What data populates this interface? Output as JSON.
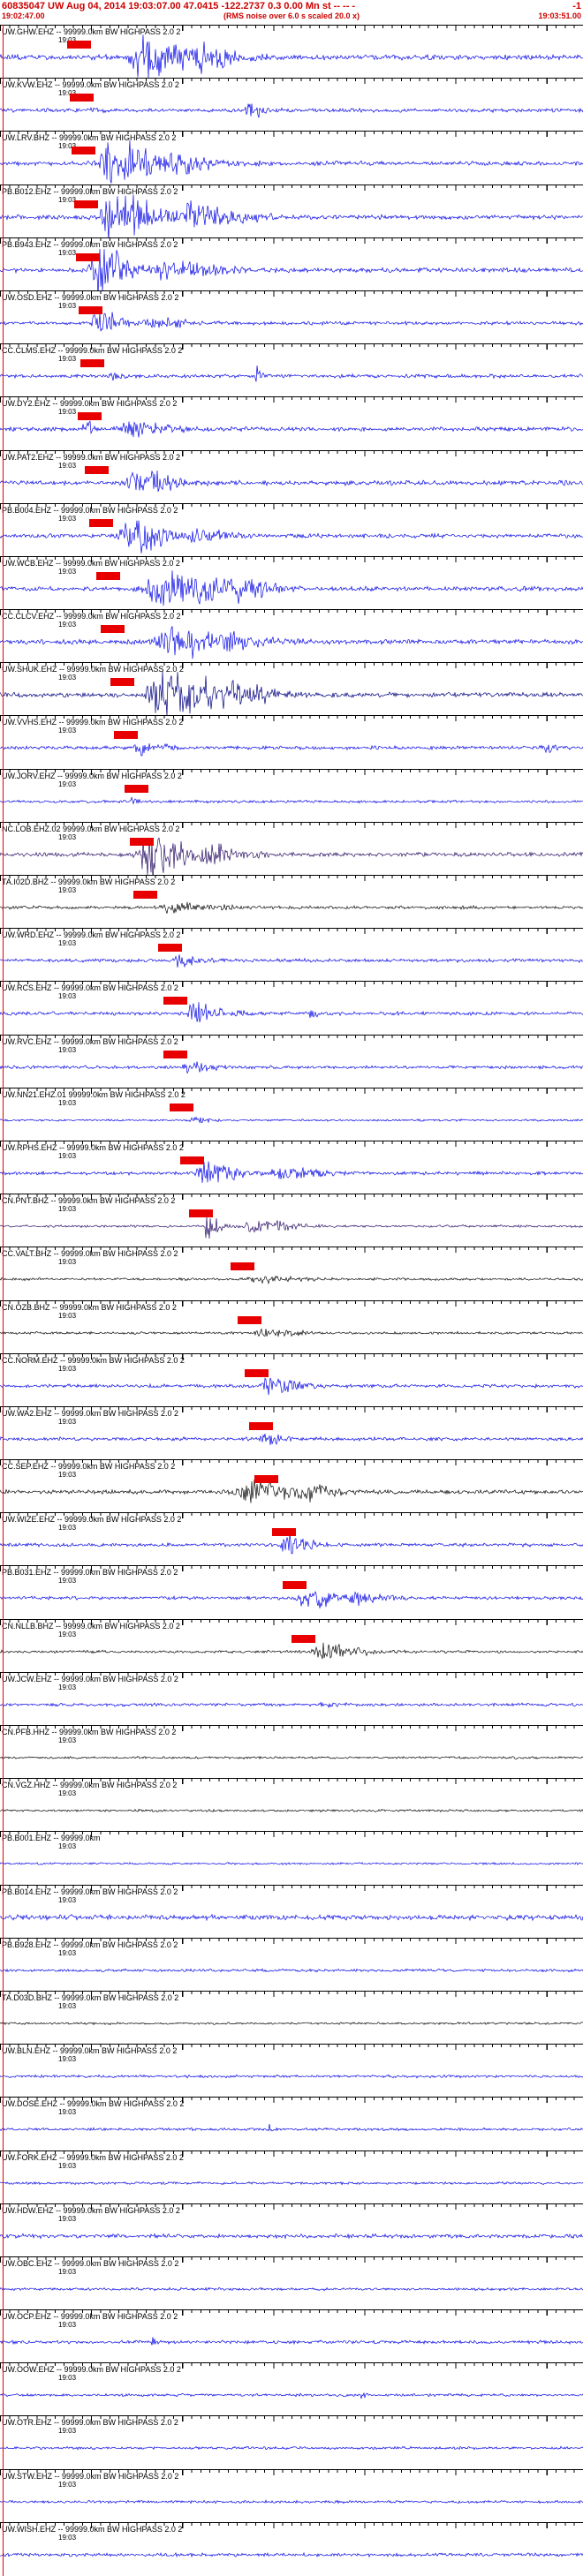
{
  "header": {
    "event_line": "60835047 UW Aug 04, 2014 19:03:07.00   47.0415 -122.2737   0.3 0.00 Mn st -- -- -",
    "flag": "-1",
    "window_start": "19:02:47.00",
    "scale_note": "(RMS noise over 6.0 s scaled 20.0 x)",
    "window_end": "19:03:51.00"
  },
  "colors": {
    "header_text": "#cc0000",
    "pick_marker": "#e80000",
    "background": "#ffffff",
    "trace_palette": {
      "blue": "#0909e6",
      "black": "#0a0a0a",
      "navy": "#000080",
      "indigo": "#2a1166"
    }
  },
  "time_axis": {
    "tick_label": "19:03",
    "start": "19:02:47.00",
    "end": "19:03:51.00",
    "span_seconds": 64
  },
  "chart_data": {
    "type": "line",
    "title": "Event 60835047 UW seismogram traces, highpass filtered, RMS noise over 6.0 s scaled 20.0 x",
    "x_start": "19:02:47.00",
    "x_end": "19:03:51.00",
    "x_tick": "19:03",
    "traces": [
      {
        "label": "UW.GHW.EHZ -- 99999.0km BW HIGHPASS 2.0 2",
        "color": "blue",
        "noise": 2.2,
        "pick": 0.115,
        "bursts": [
          [
            0.24,
            0.05,
            20
          ],
          [
            0.34,
            0.05,
            8
          ]
        ]
      },
      {
        "label": "UW.KVW.EHZ -- 99999.0km BW HIGHPASS 2.0 2",
        "color": "blue",
        "noise": 1.6,
        "pick": 0.12,
        "bursts": [
          [
            0.425,
            0.02,
            8
          ],
          [
            0.15,
            0.01,
            3
          ]
        ]
      },
      {
        "label": "UW.LRV.BHZ -- 99999.0km BW HIGHPASS 2.0 2",
        "color": "blue",
        "noise": 2.0,
        "pick": 0.123,
        "bursts": [
          [
            0.19,
            0.06,
            18
          ],
          [
            0.31,
            0.04,
            7
          ]
        ]
      },
      {
        "label": "PB.B012.EHZ -- 99999.0km BW HIGHPASS 2.0 2",
        "color": "blue",
        "noise": 2.0,
        "pick": 0.127,
        "bursts": [
          [
            0.19,
            0.06,
            20
          ],
          [
            0.33,
            0.06,
            9
          ]
        ]
      },
      {
        "label": "PB.B943.EHZ -- 99999.0km BW HIGHPASS 2.0 2",
        "color": "blue",
        "noise": 2.0,
        "pick": 0.13,
        "bursts": [
          [
            0.165,
            0.035,
            22
          ],
          [
            0.28,
            0.06,
            7
          ]
        ]
      },
      {
        "label": "UW.OSD.EHZ -- 99999.0km BW HIGHPASS 2.0 2",
        "color": "blue",
        "noise": 1.6,
        "pick": 0.135,
        "bursts": [
          [
            0.165,
            0.03,
            11
          ],
          [
            0.26,
            0.04,
            4
          ]
        ]
      },
      {
        "label": "CC.CLMS.EHZ -- 99999.0km BW HIGHPASS 2.0 2",
        "color": "blue",
        "noise": 1.6,
        "pick": 0.138,
        "bursts": [
          [
            0.44,
            0.006,
            9
          ],
          [
            0.19,
            0.02,
            3
          ]
        ]
      },
      {
        "label": "UW.DY2.EHZ -- 99999.0km BW HIGHPASS 2.0 2",
        "color": "blue",
        "noise": 1.8,
        "pick": 0.133,
        "bursts": [
          [
            0.143,
            0.008,
            14
          ],
          [
            0.22,
            0.05,
            5
          ]
        ]
      },
      {
        "label": "UW.PAT2.EHZ -- 99999.0km BW HIGHPASS 2.0 2",
        "color": "blue",
        "noise": 2.0,
        "pick": 0.146,
        "bursts": [
          [
            0.23,
            0.05,
            11
          ]
        ]
      },
      {
        "label": "PB.B004.EHZ -- 99999.0km BW HIGHPASS 2.0 2",
        "color": "blue",
        "noise": 1.8,
        "pick": 0.153,
        "bursts": [
          [
            0.22,
            0.05,
            13
          ],
          [
            0.33,
            0.04,
            5
          ]
        ]
      },
      {
        "label": "UW.WCB.EHZ -- 99999.0km BW HIGHPASS 2.0 2",
        "color": "blue",
        "noise": 2.0,
        "pick": 0.165,
        "bursts": [
          [
            0.27,
            0.08,
            16
          ],
          [
            0.41,
            0.04,
            7
          ]
        ]
      },
      {
        "label": "CC.CLCV.EHZ -- 99999.0km BW HIGHPASS 2.0 2",
        "color": "blue",
        "noise": 2.0,
        "pick": 0.173,
        "bursts": [
          [
            0.29,
            0.08,
            15
          ]
        ]
      },
      {
        "label": "UW.SHUK.EHZ -- 99999.0km BW HIGHPASS 2.0 2",
        "color": "navy",
        "noise": 2.2,
        "pick": 0.19,
        "bursts": [
          [
            0.27,
            0.07,
            22
          ],
          [
            0.39,
            0.05,
            9
          ]
        ]
      },
      {
        "label": "UW.VVHS.EHZ -- 99999.0km BW HIGHPASS 2.0 2",
        "color": "blue",
        "noise": 1.5,
        "pick": 0.196,
        "bursts": [
          [
            0.235,
            0.03,
            6
          ],
          [
            0.93,
            0.015,
            4
          ]
        ]
      },
      {
        "label": "UW.JORV.EHZ -- 99999.0km BW HIGHPASS 2.0 2",
        "color": "blue",
        "noise": 1.2,
        "pick": 0.213,
        "bursts": [
          [
            0.225,
            0.008,
            5
          ]
        ]
      },
      {
        "label": "NC.LOB.EHZ.02 99999.0km BW HIGHPASS 2.0 2",
        "color": "indigo",
        "noise": 1.8,
        "pick": 0.222,
        "bursts": [
          [
            0.255,
            0.055,
            20
          ],
          [
            0.36,
            0.04,
            7
          ]
        ]
      },
      {
        "label": "TA.I02D.BHZ -- 99999.0km BW HIGHPASS 2.0 2",
        "color": "black",
        "noise": 1.4,
        "pick": 0.229,
        "bursts": [
          [
            0.29,
            0.06,
            4
          ]
        ]
      },
      {
        "label": "UW.WRD.EHZ -- 99999.0km BW HIGHPASS 2.0 2",
        "color": "blue",
        "noise": 1.5,
        "pick": 0.271,
        "bursts": [
          [
            0.3,
            0.03,
            6
          ]
        ]
      },
      {
        "label": "UW.RCS.EHZ -- 99999.0km BW HIGHPASS 2.0 2",
        "color": "blue",
        "noise": 1.5,
        "pick": 0.28,
        "bursts": [
          [
            0.33,
            0.04,
            8
          ],
          [
            0.53,
            0.008,
            4
          ]
        ]
      },
      {
        "label": "UW.RVC.EHZ -- 99999.0km BW HIGHPASS 2.0 2",
        "color": "blue",
        "noise": 1.4,
        "pick": 0.281,
        "bursts": [
          [
            0.32,
            0.03,
            4
          ]
        ]
      },
      {
        "label": "UW.NN21.EHZ.01 99999.0km BW HIGHPASS 2.0 2",
        "color": "blue",
        "noise": 0.9,
        "pick": 0.291,
        "bursts": [
          [
            0.325,
            0.02,
            2.5
          ]
        ]
      },
      {
        "label": "UW.RPHS.EHZ -- 99999.0km BW HIGHPASS 2.0 2",
        "color": "blue",
        "noise": 1.5,
        "pick": 0.309,
        "bursts": [
          [
            0.35,
            0.04,
            9
          ],
          [
            0.48,
            0.05,
            5
          ]
        ]
      },
      {
        "label": "CN.PNT.BHZ -- 99999.0km BW HIGHPASS 2.0 2",
        "color": "indigo",
        "noise": 1.1,
        "pick": 0.324,
        "bursts": [
          [
            0.355,
            0.015,
            13
          ],
          [
            0.43,
            0.05,
            5
          ]
        ]
      },
      {
        "label": "CC.VALT.BHZ -- 99999.0km BW HIGHPASS 2.0 2",
        "color": "black",
        "noise": 1.1,
        "pick": 0.395,
        "bursts": [
          [
            0.44,
            0.05,
            2.5
          ]
        ]
      },
      {
        "label": "CN.OZB.BHZ -- 99999.0km BW HIGHPASS 2.0 2",
        "color": "black",
        "noise": 1.1,
        "pick": 0.407,
        "bursts": [
          [
            0.45,
            0.04,
            4
          ]
        ]
      },
      {
        "label": "CC.NORM.EHZ -- 99999.0km BW HIGHPASS 2.0 2",
        "color": "blue",
        "noise": 1.5,
        "pick": 0.419,
        "bursts": [
          [
            0.46,
            0.035,
            8
          ]
        ]
      },
      {
        "label": "UW.WA2.EHZ -- 99999.0km BW HIGHPASS 2.0 2",
        "color": "blue",
        "noise": 1.5,
        "pick": 0.428,
        "bursts": [
          [
            0.45,
            0.025,
            5
          ]
        ]
      },
      {
        "label": "CC.SEP.EHZ -- 99999.0km BW HIGHPASS 2.0 2",
        "color": "black",
        "noise": 1.8,
        "pick": 0.437,
        "bursts": [
          [
            0.42,
            0.055,
            11
          ],
          [
            0.52,
            0.04,
            5
          ]
        ]
      },
      {
        "label": "UW.WIZE.EHZ -- 99999.0km BW HIGHPASS 2.0 2",
        "color": "blue",
        "noise": 1.5,
        "pick": 0.467,
        "bursts": [
          [
            0.49,
            0.03,
            9
          ]
        ]
      },
      {
        "label": "PB.B031.EHZ -- 99999.0km BW HIGHPASS 2.0 2",
        "color": "blue",
        "noise": 1.5,
        "pick": 0.485,
        "bursts": [
          [
            0.52,
            0.04,
            9
          ],
          [
            0.61,
            0.03,
            4
          ]
        ]
      },
      {
        "label": "CN.NLLB.BHZ -- 99999.0km BW HIGHPASS 2.0 2",
        "color": "black",
        "noise": 1.2,
        "pick": 0.5,
        "bursts": [
          [
            0.545,
            0.05,
            6
          ]
        ]
      },
      {
        "label": "UW.JCW.EHZ -- 99999.0km BW HIGHPASS 2.0 2",
        "color": "blue",
        "noise": 1.4,
        "pick": null,
        "bursts": [
          [
            0.55,
            0.02,
            3
          ]
        ]
      },
      {
        "label": "CN.PFB.HHZ -- 99999.0km BW HIGHPASS 2.0 2",
        "color": "black",
        "noise": 1.0,
        "pick": null,
        "bursts": []
      },
      {
        "label": "CN.VGZ.HHZ -- 99999.0km BW HIGHPASS 2.0 2",
        "color": "black",
        "noise": 1.0,
        "pick": null,
        "bursts": []
      },
      {
        "label": "PB.B001.EHZ -- 99999.0km",
        "color": "blue",
        "noise": 0.9,
        "pick": null,
        "bursts": []
      },
      {
        "label": "PB.B014.EHZ -- 99999.0km BW HIGHPASS 2.0 2",
        "color": "blue",
        "noise": 2.2,
        "pick": null,
        "bursts": []
      },
      {
        "label": "PB.B928.EHZ -- 99999.0km BW HIGHPASS 2.0 2",
        "color": "blue",
        "noise": 1.2,
        "pick": null,
        "bursts": []
      },
      {
        "label": "TA.D03D.BHZ -- 99999.0km BW HIGHPASS 2.0 2",
        "color": "black",
        "noise": 1.0,
        "pick": null,
        "bursts": []
      },
      {
        "label": "UW.BLN.EHZ -- 99999.0km BW HIGHPASS 2.0 2",
        "color": "blue",
        "noise": 1.2,
        "pick": null,
        "bursts": [
          [
            0.32,
            0.004,
            3
          ]
        ]
      },
      {
        "label": "UW.DOSE.EHZ -- 99999.0km BW HIGHPASS 2.0 2",
        "color": "blue",
        "noise": 1.2,
        "pick": null,
        "bursts": [
          [
            0.46,
            0.004,
            4
          ]
        ]
      },
      {
        "label": "UW.FORK.EHZ -- 99999.0km BW HIGHPASS 2.0 2",
        "color": "blue",
        "noise": 1.1,
        "pick": null,
        "bursts": []
      },
      {
        "label": "UW.HDW.EHZ -- 99999.0km BW HIGHPASS 2.0 2",
        "color": "blue",
        "noise": 1.8,
        "pick": null,
        "bursts": []
      },
      {
        "label": "UW.OBC.EHZ -- 99999.0km BW HIGHPASS 2.0 2",
        "color": "blue",
        "noise": 1.2,
        "pick": null,
        "bursts": []
      },
      {
        "label": "UW.OCP.EHZ -- 99999.0km BW HIGHPASS 2.0 2",
        "color": "blue",
        "noise": 1.4,
        "pick": null,
        "bursts": [
          [
            0.26,
            0.006,
            3
          ]
        ]
      },
      {
        "label": "UW.OOW.EHZ -- 99999.0km BW HIGHPASS 2.0 2",
        "color": "blue",
        "noise": 1.2,
        "pick": null,
        "bursts": [
          [
            0.62,
            0.004,
            4
          ]
        ]
      },
      {
        "label": "UW.OTR.EHZ -- 99999.0km BW HIGHPASS 2.0 2",
        "color": "blue",
        "noise": 1.2,
        "pick": null,
        "bursts": []
      },
      {
        "label": "UW.STW.EHZ -- 99999.0km BW HIGHPASS 2.0 2",
        "color": "blue",
        "noise": 1.2,
        "pick": null,
        "bursts": []
      },
      {
        "label": "UW.WISH.EHZ -- 99999.0km BW HIGHPASS 2.0 2",
        "color": "blue",
        "noise": 1.5,
        "pick": null,
        "bursts": []
      }
    ]
  }
}
